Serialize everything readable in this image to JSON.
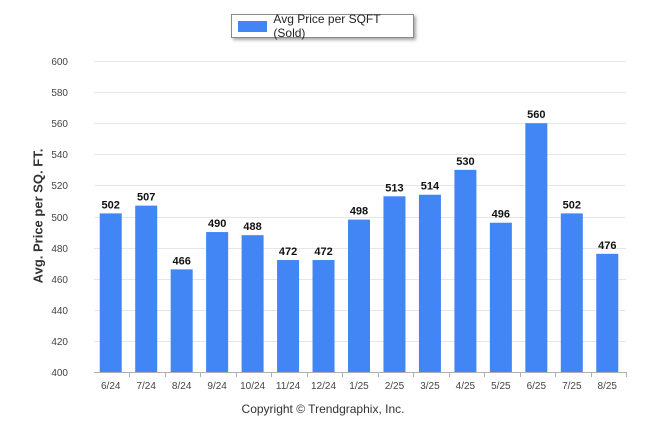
{
  "legend": {
    "label": "Avg Price per SQFT (Sold)",
    "color": "#4285f4"
  },
  "copyright": "Copyright © Trendgraphix, Inc.",
  "chart_data": {
    "type": "bar",
    "title": "",
    "xlabel": "",
    "ylabel": "Avg. Price per SQ. FT.",
    "categories": [
      "6/24",
      "7/24",
      "8/24",
      "9/24",
      "10/24",
      "11/24",
      "12/24",
      "1/25",
      "2/25",
      "3/25",
      "4/25",
      "5/25",
      "6/25",
      "7/25",
      "8/25"
    ],
    "series": [
      {
        "name": "Avg Price per SQFT (Sold)",
        "values": [
          502,
          507,
          466,
          490,
          488,
          472,
          472,
          498,
          513,
          514,
          530,
          496,
          560,
          502,
          476
        ],
        "color": "#4285f4"
      }
    ],
    "ylim": [
      400,
      600
    ],
    "yticks": [
      400,
      420,
      440,
      460,
      480,
      500,
      520,
      540,
      560,
      580,
      600
    ],
    "grid": true,
    "legend_position": "top-center"
  }
}
